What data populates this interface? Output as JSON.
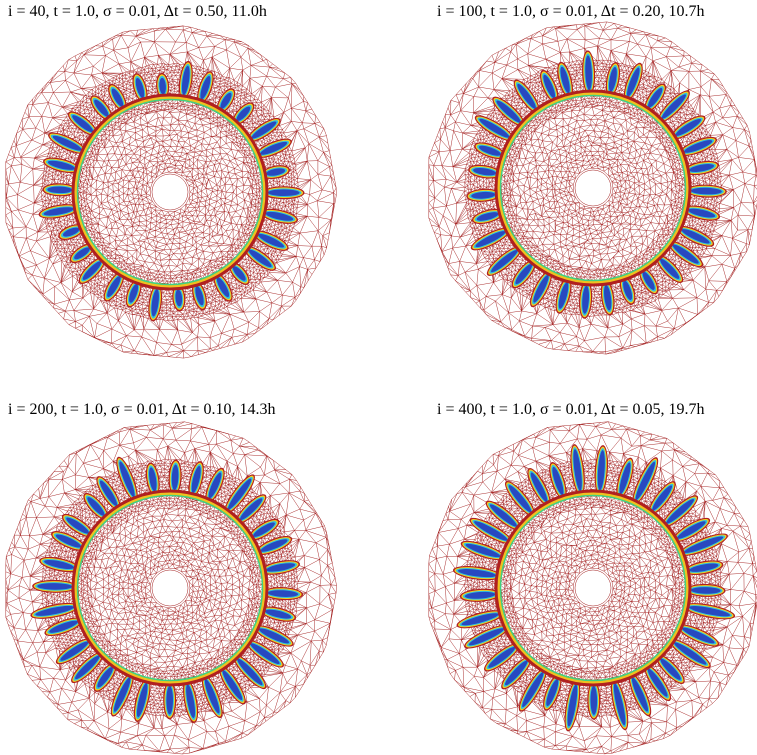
{
  "panels": [
    {
      "caption": "i = 40, t = 1.0, σ = 0.01, Δt = 0.50, 11.0h"
    },
    {
      "caption": "i = 100, t = 1.0, σ = 0.01, Δt = 0.20, 10.7h"
    },
    {
      "caption": "i = 200, t = 1.0, σ = 0.01, Δt = 0.10, 14.3h"
    },
    {
      "caption": "i = 400, t = 1.0, σ = 0.01, Δt = 0.05, 19.7h"
    }
  ]
}
